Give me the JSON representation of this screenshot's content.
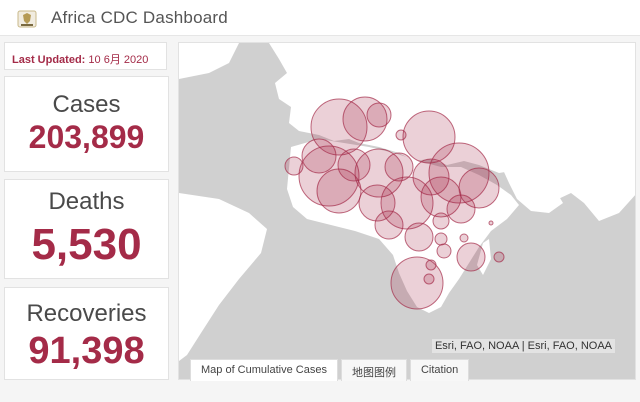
{
  "header": {
    "title": "Africa CDC Dashboard",
    "logo_icon": "africa-cdc-logo"
  },
  "last_updated": {
    "label": "Last Updated:",
    "value": "10 6月 2020"
  },
  "stats": {
    "cases": {
      "label": "Cases",
      "value": "203,899"
    },
    "deaths": {
      "label": "Deaths",
      "value": "5,530"
    },
    "recoveries": {
      "label": "Recoveries",
      "value": "91,398"
    }
  },
  "map": {
    "attribution": "Esri, FAO, NOAA | Esri, FAO, NOAA"
  },
  "tabs": [
    {
      "label": "Map of Cumulative Cases"
    },
    {
      "label": "地图图例"
    },
    {
      "label": "Citation"
    }
  ],
  "colors": {
    "accent": "#a42b48",
    "bubble_fill": "#e8c6cd",
    "land": "#ffffff",
    "water": "#d0d0d0"
  }
}
